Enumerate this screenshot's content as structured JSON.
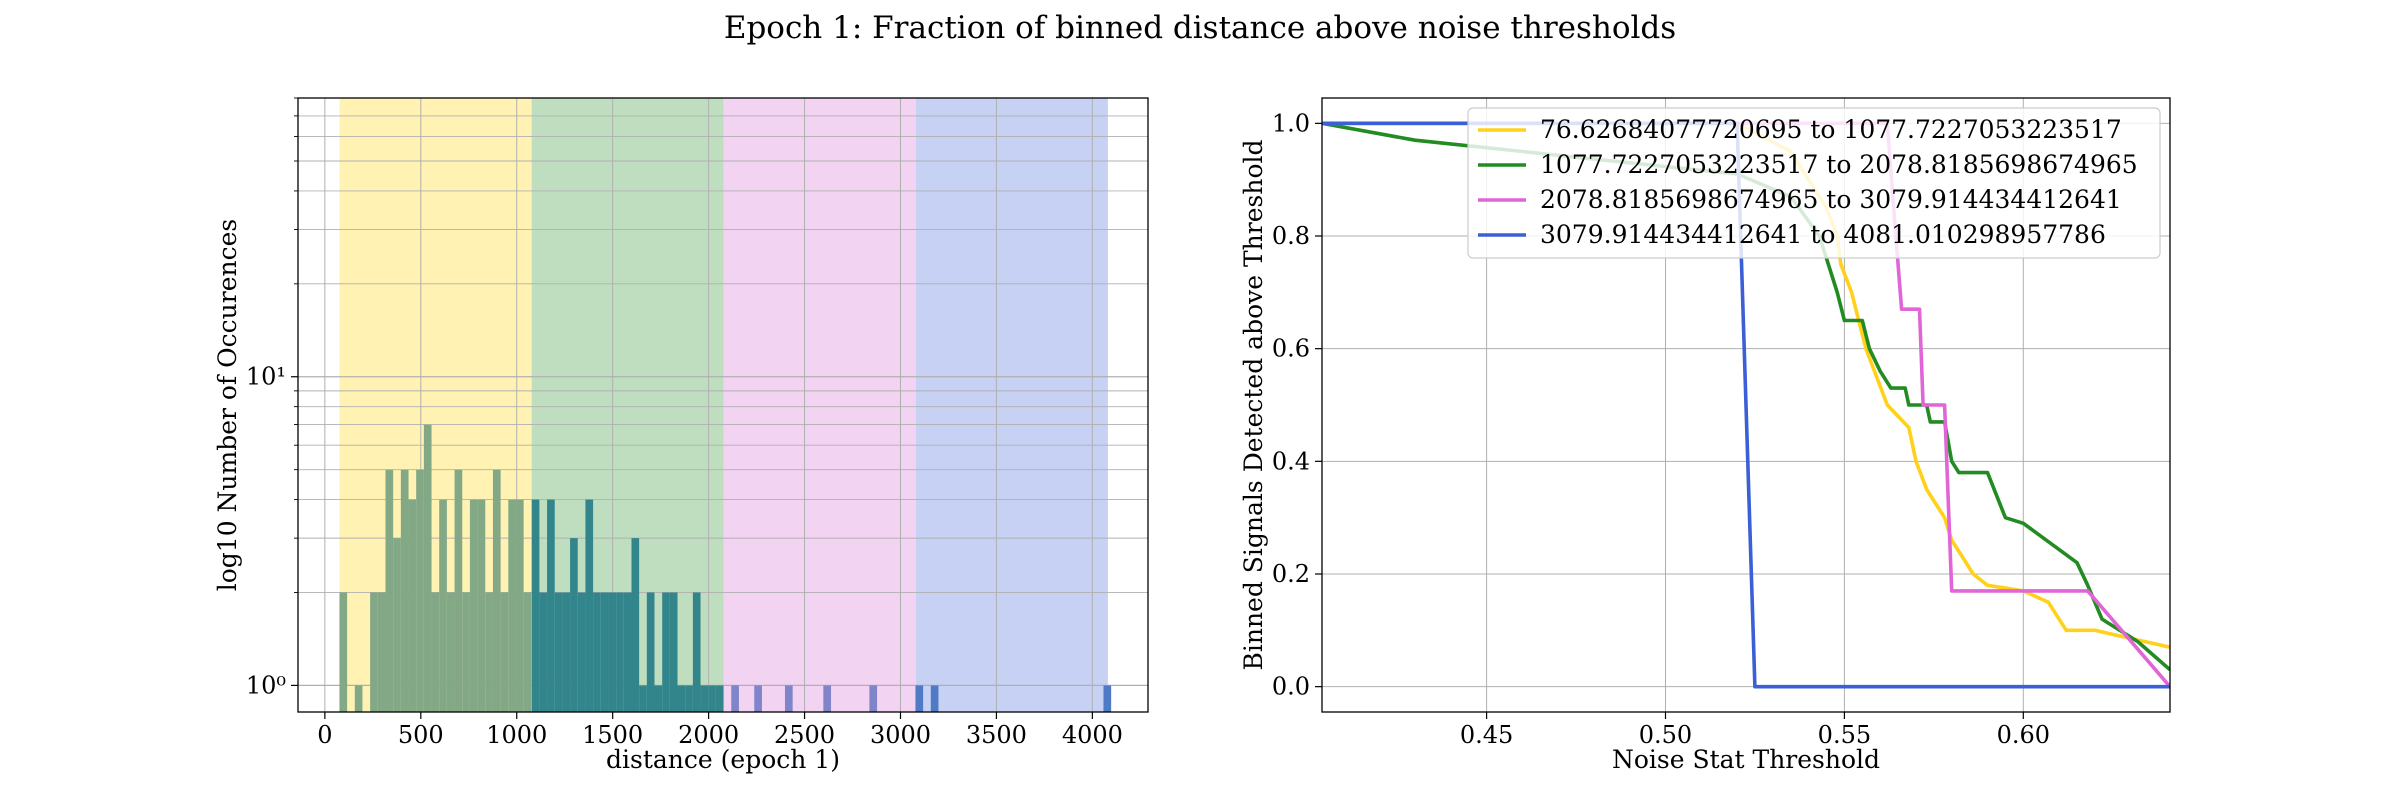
{
  "figure": {
    "title": "Epoch 1: Fraction of binned distance above noise thresholds"
  },
  "chart_data": [
    {
      "type": "bar",
      "xlabel": "distance (epoch 1)",
      "ylabel": "log10 Number of Occurences",
      "yscale": "log",
      "xlim": [
        -140,
        4290
      ],
      "ylim": [
        0.82,
        80
      ],
      "xticks": [
        0,
        500,
        1000,
        1500,
        2000,
        2500,
        3000,
        3500,
        4000
      ],
      "yticks": [
        1,
        10
      ],
      "ytick_labels": [
        "10⁰",
        "10¹"
      ],
      "grid": true,
      "bin_width": 40,
      "bands": [
        {
          "from": 76.63,
          "to": 1077.72,
          "color": "#fff2b3"
        },
        {
          "from": 1077.72,
          "to": 2078.82,
          "color": "#bfdebf"
        },
        {
          "from": 2078.82,
          "to": 3079.91,
          "color": "#f2d3f2"
        },
        {
          "from": 3079.91,
          "to": 4081.01,
          "color": "#c6d1f4"
        }
      ],
      "series": [
        {
          "color": "#82a886",
          "x": [
            96,
            176,
            256,
            296,
            336,
            376,
            416,
            456,
            496,
            536,
            576,
            616,
            656,
            696,
            736,
            776,
            816,
            856,
            896,
            936,
            976,
            1016,
            1056
          ],
          "values": [
            2,
            1,
            2,
            2,
            5,
            3,
            5,
            4,
            5,
            7,
            2,
            4,
            2,
            5,
            2,
            4,
            4,
            2,
            5,
            2,
            4,
            4,
            2
          ]
        },
        {
          "color": "#33858c",
          "x": [
            1098,
            1138,
            1178,
            1218,
            1258,
            1298,
            1338,
            1378,
            1418,
            1458,
            1498,
            1538,
            1578,
            1618,
            1658,
            1698,
            1738,
            1778,
            1818,
            1858,
            1898,
            1938,
            1978,
            2018,
            2058
          ],
          "values": [
            4,
            2,
            4,
            2,
            2,
            3,
            2,
            4,
            2,
            2,
            2,
            2,
            2,
            3,
            1,
            2,
            1,
            2,
            2,
            1,
            1,
            2,
            1,
            1,
            1
          ]
        },
        {
          "color": "#7f85c8",
          "x": [
            2138,
            2258,
            2418,
            2618,
            2858
          ],
          "values": [
            1,
            1,
            1,
            1,
            1
          ]
        },
        {
          "color": "#4f7ac6",
          "x": [
            3098,
            3178,
            4078
          ],
          "values": [
            1,
            1,
            1
          ]
        }
      ]
    },
    {
      "type": "line",
      "xlabel": "Noise Stat Threshold",
      "ylabel": "Binned Signals Detected above Threshold",
      "xlim": [
        0.404,
        0.641
      ],
      "ylim": [
        -0.045,
        1.045
      ],
      "xticks": [
        0.45,
        0.5,
        0.55,
        0.6
      ],
      "xtick_labels": [
        "0.45",
        "0.50",
        "0.55",
        "0.60"
      ],
      "yticks": [
        0,
        0.2,
        0.4,
        0.6,
        0.8,
        1.0
      ],
      "ytick_labels": [
        "0.0",
        "0.2",
        "0.4",
        "0.6",
        "0.8",
        "1.0"
      ],
      "grid": true,
      "legend": "top-right",
      "series": [
        {
          "name": "76.62684077720695 to 1077.7227053223517",
          "color": "#ffd11a",
          "points": [
            [
              0.404,
              1.0
            ],
            [
              0.52,
              1.0
            ],
            [
              0.535,
              0.95
            ],
            [
              0.545,
              0.85
            ],
            [
              0.548,
              0.8
            ],
            [
              0.549,
              0.75
            ],
            [
              0.552,
              0.7
            ],
            [
              0.556,
              0.6
            ],
            [
              0.559,
              0.55
            ],
            [
              0.562,
              0.5
            ],
            [
              0.565,
              0.48
            ],
            [
              0.568,
              0.46
            ],
            [
              0.57,
              0.4
            ],
            [
              0.573,
              0.35
            ],
            [
              0.576,
              0.32
            ],
            [
              0.578,
              0.3
            ],
            [
              0.58,
              0.26
            ],
            [
              0.583,
              0.23
            ],
            [
              0.586,
              0.2
            ],
            [
              0.59,
              0.18
            ],
            [
              0.6,
              0.17
            ],
            [
              0.607,
              0.15
            ],
            [
              0.612,
              0.1
            ],
            [
              0.62,
              0.1
            ],
            [
              0.627,
              0.09
            ],
            [
              0.641,
              0.07
            ]
          ]
        },
        {
          "name": "1077.7227053223517 to 2078.8185698674965",
          "color": "#228b22",
          "points": [
            [
              0.404,
              1.0
            ],
            [
              0.43,
              0.97
            ],
            [
              0.46,
              0.95
            ],
            [
              0.49,
              0.93
            ],
            [
              0.52,
              0.91
            ],
            [
              0.535,
              0.87
            ],
            [
              0.543,
              0.8
            ],
            [
              0.548,
              0.7
            ],
            [
              0.55,
              0.65
            ],
            [
              0.555,
              0.65
            ],
            [
              0.557,
              0.6
            ],
            [
              0.56,
              0.56
            ],
            [
              0.563,
              0.53
            ],
            [
              0.567,
              0.53
            ],
            [
              0.568,
              0.5
            ],
            [
              0.573,
              0.5
            ],
            [
              0.574,
              0.47
            ],
            [
              0.578,
              0.47
            ],
            [
              0.58,
              0.4
            ],
            [
              0.582,
              0.38
            ],
            [
              0.59,
              0.38
            ],
            [
              0.595,
              0.3
            ],
            [
              0.6,
              0.29
            ],
            [
              0.615,
              0.22
            ],
            [
              0.618,
              0.18
            ],
            [
              0.622,
              0.12
            ],
            [
              0.632,
              0.08
            ],
            [
              0.641,
              0.03
            ]
          ]
        },
        {
          "name": "2078.8185698674965 to 3079.914434412641",
          "color": "#e066d8",
          "points": [
            [
              0.404,
              1.0
            ],
            [
              0.562,
              1.0
            ],
            [
              0.564,
              0.83
            ],
            [
              0.566,
              0.67
            ],
            [
              0.571,
              0.67
            ],
            [
              0.572,
              0.5
            ],
            [
              0.578,
              0.5
            ],
            [
              0.58,
              0.17
            ],
            [
              0.618,
              0.17
            ],
            [
              0.641,
              0.0
            ]
          ]
        },
        {
          "name": "3079.914434412641 to 4081.010298957786",
          "color": "#3b5fd6",
          "points": [
            [
              0.404,
              1.0
            ],
            [
              0.52,
              1.0
            ],
            [
              0.525,
              0.0
            ],
            [
              0.641,
              0.0
            ]
          ]
        }
      ]
    }
  ]
}
